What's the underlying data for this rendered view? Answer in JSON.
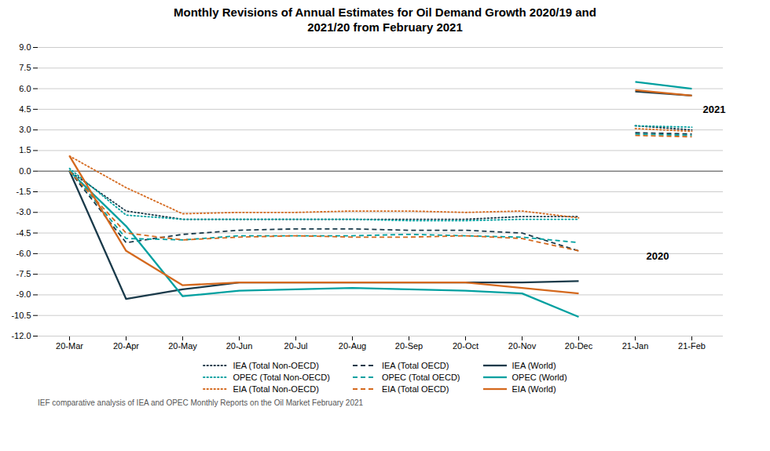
{
  "chart_data": {
    "type": "line",
    "title": "Monthly Revisions of Annual Estimates for Oil Demand Growth 2020/19 and\n2021/20 from February 2021",
    "caption": "IEF comparative analysis of IEA and OPEC Monthly Reports on the Oil Market February 2021",
    "categories": [
      "20-Mar",
      "20-Apr",
      "20-May",
      "20-Jun",
      "20-Jul",
      "20-Aug",
      "20-Sep",
      "20-Oct",
      "20-Nov",
      "20-Dec",
      "21-Jan",
      "21-Feb"
    ],
    "ylim": [
      -12.0,
      9.0
    ],
    "yticks": [
      {
        "value": -12.0,
        "label": "-12.0"
      },
      -10.5,
      {
        "value": -9.0,
        "label": "-9.0"
      },
      -7.5,
      {
        "value": -6.0,
        "label": "-6.0"
      },
      -4.5,
      {
        "value": -3.0,
        "label": "-3.0"
      },
      -1.5,
      {
        "value": 0.0,
        "label": "0.0"
      },
      1.5,
      {
        "value": 3.0,
        "label": "3.0"
      },
      4.5,
      {
        "value": 6.0,
        "label": "6.0"
      },
      7.5,
      {
        "value": 9.0,
        "label": "9.0"
      }
    ],
    "grid": true,
    "legend": "bottom",
    "series": [
      {
        "name": "IEA (Total Non-OECD)",
        "color": "#1a3a4a",
        "line_style": "dotted",
        "values": [
          0.0,
          -2.9,
          -3.5,
          -3.5,
          -3.5,
          -3.5,
          -3.5,
          -3.5,
          -3.3,
          -3.3,
          null,
          null
        ]
      },
      {
        "name": "IEA (Total OECD)",
        "color": "#1a3a4a",
        "line_style": "dashed",
        "values": [
          0.0,
          -5.2,
          -4.6,
          -4.3,
          -4.2,
          -4.2,
          -4.3,
          -4.3,
          -4.5,
          -5.8,
          null,
          null
        ]
      },
      {
        "name": "IEA (World)",
        "color": "#1a3a4a",
        "line_style": "solid",
        "values": [
          0.0,
          -9.3,
          -8.6,
          -8.1,
          -8.1,
          -8.1,
          -8.1,
          -8.1,
          -8.1,
          -8.0,
          null,
          null
        ]
      },
      {
        "name": "OPEC (Total Non-OECD)",
        "color": "#00a0a0",
        "line_style": "dotted",
        "values": [
          0.2,
          -3.2,
          -3.5,
          -3.5,
          -3.5,
          -3.5,
          -3.6,
          -3.6,
          -3.5,
          -3.5,
          null,
          null
        ]
      },
      {
        "name": "OPEC (Total OECD)",
        "color": "#00a0a0",
        "line_style": "dashed",
        "values": [
          0.1,
          -4.9,
          -5.0,
          -4.7,
          -4.7,
          -4.7,
          -4.6,
          -4.7,
          -4.8,
          -5.2,
          null,
          null
        ]
      },
      {
        "name": "OPEC (World)",
        "color": "#00a0a0",
        "line_style": "solid",
        "values": [
          0.0,
          -4.0,
          -9.1,
          -8.7,
          -8.6,
          -8.5,
          -8.6,
          -8.7,
          -8.9,
          -10.6,
          null,
          null
        ]
      },
      {
        "name": "EIA (Total Non-OECD)",
        "color": "#d4691e",
        "line_style": "dotted",
        "values": [
          1.1,
          -1.2,
          -3.1,
          -3.0,
          -3.0,
          -2.9,
          -2.9,
          -3.0,
          -2.9,
          -3.4,
          null,
          null
        ]
      },
      {
        "name": "EIA (Total OECD)",
        "color": "#d4691e",
        "line_style": "dashed",
        "values": [
          0.0,
          -4.5,
          -5.0,
          -4.8,
          -4.7,
          -4.8,
          -4.8,
          -4.7,
          -4.9,
          -5.8,
          null,
          null
        ]
      },
      {
        "name": "EIA (World)",
        "color": "#d4691e",
        "line_style": "solid",
        "values": [
          1.1,
          -5.8,
          -8.3,
          -8.1,
          -8.1,
          -8.1,
          -8.1,
          -8.1,
          -8.5,
          -8.9,
          null,
          null
        ]
      },
      {
        "name": "IEA (Total Non-OECD)",
        "color": "#1a3a4a",
        "line_style": "dotted",
        "values": [
          null,
          null,
          null,
          null,
          null,
          null,
          null,
          null,
          null,
          null,
          3.3,
          3.0
        ]
      },
      {
        "name": "IEA (Total OECD)",
        "color": "#1a3a4a",
        "line_style": "dashed",
        "values": [
          null,
          null,
          null,
          null,
          null,
          null,
          null,
          null,
          null,
          null,
          2.8,
          2.7
        ]
      },
      {
        "name": "IEA (World)",
        "color": "#1a3a4a",
        "line_style": "solid",
        "values": [
          null,
          null,
          null,
          null,
          null,
          null,
          null,
          null,
          null,
          null,
          5.8,
          5.5
        ]
      },
      {
        "name": "OPEC (Total Non-OECD)",
        "color": "#00a0a0",
        "line_style": "dotted",
        "values": [
          null,
          null,
          null,
          null,
          null,
          null,
          null,
          null,
          null,
          null,
          3.3,
          3.2
        ]
      },
      {
        "name": "OPEC (Total OECD)",
        "color": "#00a0a0",
        "line_style": "dashed",
        "values": [
          null,
          null,
          null,
          null,
          null,
          null,
          null,
          null,
          null,
          null,
          2.7,
          2.6
        ]
      },
      {
        "name": "OPEC (World)",
        "color": "#00a0a0",
        "line_style": "solid",
        "values": [
          null,
          null,
          null,
          null,
          null,
          null,
          null,
          null,
          null,
          null,
          6.5,
          6.0
        ]
      },
      {
        "name": "EIA (Total Non-OECD)",
        "color": "#d4691e",
        "line_style": "dotted",
        "values": [
          null,
          null,
          null,
          null,
          null,
          null,
          null,
          null,
          null,
          null,
          3.1,
          2.9
        ]
      },
      {
        "name": "EIA (Total OECD)",
        "color": "#d4691e",
        "line_style": "dashed",
        "values": [
          null,
          null,
          null,
          null,
          null,
          null,
          null,
          null,
          null,
          null,
          2.6,
          2.5
        ]
      },
      {
        "name": "EIA (World)",
        "color": "#d4691e",
        "line_style": "solid",
        "values": [
          null,
          null,
          null,
          null,
          null,
          null,
          null,
          null,
          null,
          null,
          5.9,
          5.5
        ]
      }
    ],
    "annotations": [
      {
        "text": "2021",
        "x": "21-Feb",
        "y": 4.5
      },
      {
        "text": "2020",
        "x": "21-Jan",
        "y": -6.2
      }
    ]
  }
}
